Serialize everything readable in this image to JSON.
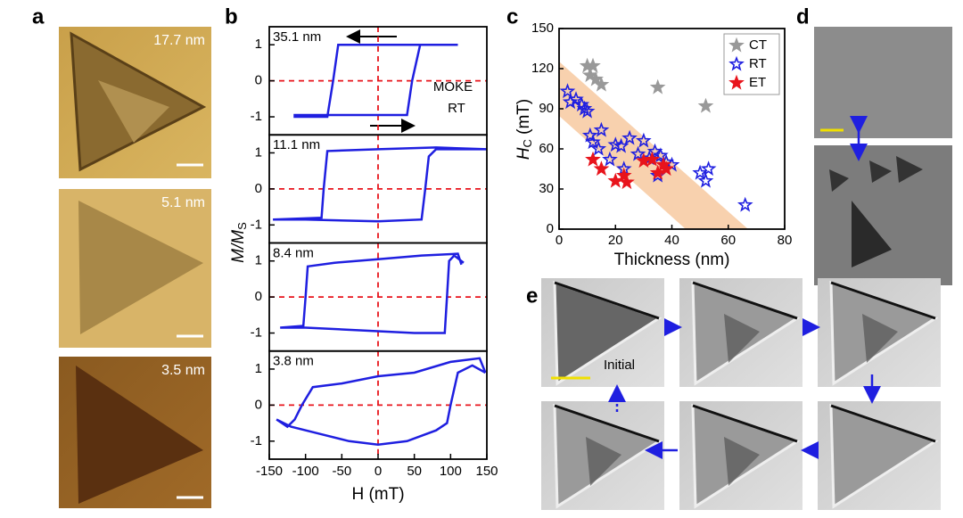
{
  "panels": {
    "a": {
      "label": "a",
      "thickness": [
        "17.7 nm",
        "5.1 nm",
        "3.5 nm"
      ]
    },
    "b": {
      "label": "b"
    },
    "c": {
      "label": "c"
    },
    "d": {
      "label": "d"
    },
    "e": {
      "label": "e",
      "note": "Initial"
    }
  },
  "chart_data": [
    {
      "type": "line",
      "label": "35.1 nm",
      "annotations": [
        "MOKE",
        "RT"
      ],
      "ylabel": "M/M",
      "ylabel_sub": "S",
      "color": "#1f1fe0",
      "xlim": [
        -150,
        150
      ],
      "ylim": [
        -1.5,
        1.5
      ],
      "yticks": [
        -1,
        0,
        1
      ],
      "x": [
        110,
        60,
        -55,
        -62,
        -70,
        -115,
        -115,
        40,
        47,
        58,
        110
      ],
      "values": [
        1,
        1,
        1,
        0,
        -1,
        -1,
        -0.95,
        -0.95,
        0,
        1,
        1
      ]
    },
    {
      "type": "line",
      "label": "11.1 nm",
      "color": "#1f1fe0",
      "xlim": [
        -150,
        150
      ],
      "ylim": [
        -1.5,
        1.5
      ],
      "yticks": [
        -1,
        0,
        1
      ],
      "x": [
        150,
        80,
        0,
        -70,
        -75,
        -78,
        -145,
        -100,
        0,
        60,
        65,
        70,
        80,
        150
      ],
      "values": [
        1.1,
        1.15,
        1.1,
        1.05,
        0,
        -0.8,
        -0.85,
        -0.85,
        -0.9,
        -0.85,
        0,
        0.9,
        1.1,
        1.1
      ]
    },
    {
      "type": "line",
      "label": "8.4 nm",
      "color": "#1f1fe0",
      "xlim": [
        -150,
        150
      ],
      "ylim": [
        -1.5,
        1.5
      ],
      "yticks": [
        -1,
        0,
        1
      ],
      "x": [
        115,
        110,
        60,
        0,
        -60,
        -97,
        -100,
        -103,
        -135,
        -100,
        -50,
        0,
        50,
        92,
        95,
        98,
        105,
        118
      ],
      "values": [
        0.9,
        1.2,
        1.15,
        1.05,
        0.95,
        0.85,
        0,
        -0.8,
        -0.85,
        -0.85,
        -0.9,
        -0.95,
        -1.0,
        -1.0,
        0,
        1.0,
        1.15,
        0.95
      ]
    },
    {
      "type": "line",
      "label": "3.8 nm",
      "color": "#1f1fe0",
      "xlim": [
        -150,
        150
      ],
      "ylim": [
        -1.5,
        1.5
      ],
      "yticks": [
        -1,
        0,
        1
      ],
      "xticks": [
        -150,
        -100,
        -50,
        0,
        50,
        100,
        150
      ],
      "xlabel": "H (mT)",
      "x": [
        148,
        140,
        100,
        50,
        0,
        -50,
        -90,
        -105,
        -115,
        -125,
        -140,
        -120,
        -80,
        -40,
        0,
        40,
        80,
        95,
        100,
        110,
        130,
        148
      ],
      "values": [
        0.9,
        1.3,
        1.2,
        0.9,
        0.8,
        0.6,
        0.5,
        0,
        -0.4,
        -0.6,
        -0.4,
        -0.6,
        -0.8,
        -1.0,
        -1.1,
        -1.0,
        -0.7,
        -0.5,
        0,
        0.9,
        1.1,
        0.9
      ]
    },
    {
      "type": "scatter",
      "xlabel": "Thickness (nm)",
      "ylabel": "H",
      "ylabel_sub": "C",
      "ylabel_unit": " (mT)",
      "xlim": [
        0,
        80
      ],
      "ylim": [
        0,
        150
      ],
      "xticks": [
        0,
        20,
        40,
        60,
        80
      ],
      "yticks": [
        0,
        30,
        60,
        90,
        120,
        150
      ],
      "legend": "upper right",
      "series": [
        {
          "name": "CT",
          "color": "#999999",
          "filled": true,
          "x": [
            10,
            12,
            11,
            13,
            15,
            35,
            52
          ],
          "values": [
            122,
            122,
            115,
            112,
            108,
            106,
            92
          ]
        },
        {
          "name": "RT",
          "color": "#1f1fe0",
          "filled": false,
          "x": [
            3,
            4,
            6,
            8,
            9,
            10,
            11,
            12,
            14,
            15,
            18,
            20,
            22,
            23,
            25,
            28,
            30,
            32,
            34,
            35,
            36,
            38,
            40,
            50,
            52,
            53,
            66
          ],
          "values": [
            103,
            95,
            97,
            93,
            90,
            88,
            70,
            65,
            60,
            74,
            52,
            63,
            62,
            45,
            68,
            56,
            66,
            53,
            58,
            40,
            55,
            50,
            48,
            42,
            36,
            45,
            18
          ]
        },
        {
          "name": "ET",
          "color": "#e8141c",
          "filled": true,
          "x": [
            12,
            15,
            20,
            23,
            24,
            30,
            33,
            35,
            37,
            38
          ],
          "values": [
            52,
            45,
            36,
            40,
            35,
            51,
            52,
            42,
            48,
            45
          ]
        }
      ]
    }
  ]
}
